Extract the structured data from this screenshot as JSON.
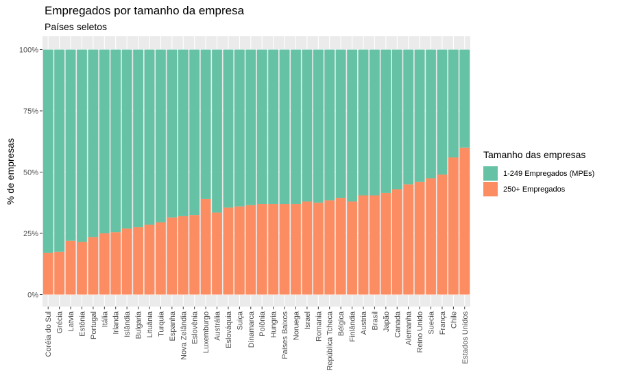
{
  "chart_data": {
    "type": "bar",
    "stacked": true,
    "normalized": true,
    "title": "Empregados por tamanho da empresa",
    "subtitle": "Países seletos",
    "xlabel": "",
    "ylabel": "% de empresas",
    "ylim": [
      0,
      100
    ],
    "yticks": [
      "0%",
      "25%",
      "50%",
      "75%",
      "100%"
    ],
    "grid": true,
    "legend_position": "right",
    "legend_title": "Tamanho das empresas",
    "categories": [
      "Coréia do Sul",
      "Grécia",
      "Latvia",
      "Estônia",
      "Portugal",
      "Itália",
      "Irlanda",
      "Islândia",
      "Bulgaria",
      "Lituânia",
      "Turquia",
      "Espanha",
      "Nova Zelândia",
      "Eslovênia",
      "Luxemburgo",
      "Austrália",
      "Eslováquia",
      "Suiça",
      "Dinamarca",
      "Polônia",
      "Hungria",
      "Países Baixos",
      "Noruega",
      "Israel",
      "Romania",
      "República Tcheca",
      "Bélgica",
      "Finlândia",
      "Austria",
      "Brasil",
      "Japão",
      "Canada",
      "Alemanha",
      "Reino Unido",
      "Suecia",
      "França",
      "Chile",
      "Estados Unidos"
    ],
    "series": [
      {
        "name": "1-249 Empregados (MPEs)",
        "color": "#66c2a5",
        "values": [
          83,
          82.5,
          78,
          78.5,
          76.5,
          75,
          74.5,
          73,
          72.5,
          71.5,
          70.5,
          68.5,
          68,
          67.5,
          61,
          66.5,
          64.5,
          64,
          63.5,
          63,
          63,
          63,
          63,
          62,
          62.5,
          61.5,
          60.5,
          62,
          59.5,
          59.5,
          58.5,
          57,
          55,
          54,
          52.5,
          51,
          44,
          40
        ]
      },
      {
        "name": "250+ Empregados",
        "color": "#fc8d62",
        "values": [
          17,
          17.5,
          22,
          21.5,
          23.5,
          25,
          25.5,
          27,
          27.5,
          28.5,
          29.5,
          31.5,
          32,
          32.5,
          39,
          33.5,
          35.5,
          36,
          36.5,
          37,
          37,
          37,
          37,
          38,
          37.5,
          38.5,
          39.5,
          38,
          40.5,
          40.5,
          41.5,
          43,
          45,
          46,
          47.5,
          49,
          56,
          60
        ]
      }
    ]
  }
}
